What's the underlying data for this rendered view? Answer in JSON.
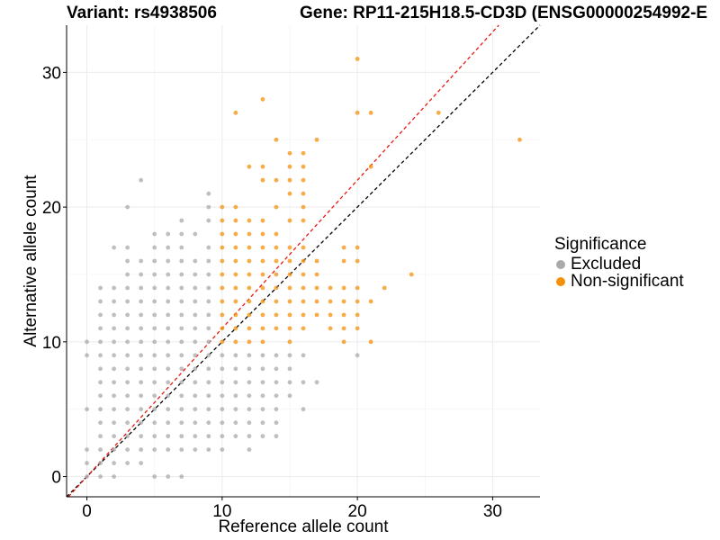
{
  "chart_data": {
    "type": "scatter",
    "title_left": "Variant: rs4938506",
    "title_right": "Gene: RP11-215H18.5-CD3D (ENSG00000254992-E",
    "xlabel": "Reference allele count",
    "ylabel": "Alternative allele count",
    "xlim": [
      -1.5,
      33.5
    ],
    "ylim": [
      -1.5,
      33.5
    ],
    "xticks": [
      0,
      10,
      20,
      30
    ],
    "yticks": [
      0,
      10,
      20,
      30
    ],
    "grid": true,
    "legend": {
      "title": "Significance",
      "placement": "right",
      "items": [
        {
          "label": "Excluded",
          "color": "#aaaaaa"
        },
        {
          "label": "Non-significant",
          "color": "#f5900a"
        }
      ]
    },
    "reference_lines": [
      {
        "slope": 1.0,
        "intercept": 0,
        "color": "#000000",
        "style": "dashed"
      },
      {
        "slope": 1.1,
        "intercept": 0,
        "color": "#e8190f",
        "style": "dashed"
      }
    ],
    "series": [
      {
        "name": "Excluded",
        "color": "#aaaaaa",
        "points": [
          [
            0,
            0
          ],
          [
            0,
            1
          ],
          [
            0,
            2
          ],
          [
            0,
            5
          ],
          [
            0,
            9
          ],
          [
            0,
            10
          ],
          [
            1,
            0
          ],
          [
            1,
            1
          ],
          [
            1,
            2
          ],
          [
            1,
            3
          ],
          [
            1,
            4
          ],
          [
            1,
            5
          ],
          [
            1,
            6
          ],
          [
            1,
            7
          ],
          [
            1,
            8
          ],
          [
            1,
            9
          ],
          [
            1,
            10
          ],
          [
            1,
            11
          ],
          [
            1,
            12
          ],
          [
            1,
            13
          ],
          [
            1,
            14
          ],
          [
            2,
            0
          ],
          [
            2,
            1
          ],
          [
            2,
            2
          ],
          [
            2,
            3
          ],
          [
            2,
            4
          ],
          [
            2,
            5
          ],
          [
            2,
            6
          ],
          [
            2,
            7
          ],
          [
            2,
            8
          ],
          [
            2,
            9
          ],
          [
            2,
            10
          ],
          [
            2,
            11
          ],
          [
            2,
            12
          ],
          [
            2,
            13
          ],
          [
            2,
            14
          ],
          [
            2,
            17
          ],
          [
            3,
            1
          ],
          [
            3,
            2
          ],
          [
            3,
            3
          ],
          [
            3,
            4
          ],
          [
            3,
            5
          ],
          [
            3,
            6
          ],
          [
            3,
            7
          ],
          [
            3,
            8
          ],
          [
            3,
            9
          ],
          [
            3,
            10
          ],
          [
            3,
            11
          ],
          [
            3,
            12
          ],
          [
            3,
            13
          ],
          [
            3,
            14
          ],
          [
            3,
            15
          ],
          [
            3,
            16
          ],
          [
            3,
            17
          ],
          [
            3,
            20
          ],
          [
            4,
            1
          ],
          [
            4,
            2
          ],
          [
            4,
            3
          ],
          [
            4,
            4
          ],
          [
            4,
            5
          ],
          [
            4,
            6
          ],
          [
            4,
            7
          ],
          [
            4,
            8
          ],
          [
            4,
            9
          ],
          [
            4,
            10
          ],
          [
            4,
            11
          ],
          [
            4,
            12
          ],
          [
            4,
            13
          ],
          [
            4,
            14
          ],
          [
            4,
            15
          ],
          [
            4,
            16
          ],
          [
            4,
            22
          ],
          [
            5,
            0
          ],
          [
            5,
            2
          ],
          [
            5,
            3
          ],
          [
            5,
            4
          ],
          [
            5,
            5
          ],
          [
            5,
            6
          ],
          [
            5,
            7
          ],
          [
            5,
            8
          ],
          [
            5,
            9
          ],
          [
            5,
            10
          ],
          [
            5,
            11
          ],
          [
            5,
            12
          ],
          [
            5,
            13
          ],
          [
            5,
            14
          ],
          [
            5,
            15
          ],
          [
            5,
            16
          ],
          [
            5,
            17
          ],
          [
            5,
            18
          ],
          [
            6,
            0
          ],
          [
            6,
            2
          ],
          [
            6,
            3
          ],
          [
            6,
            4
          ],
          [
            6,
            5
          ],
          [
            6,
            6
          ],
          [
            6,
            7
          ],
          [
            6,
            8
          ],
          [
            6,
            9
          ],
          [
            6,
            10
          ],
          [
            6,
            11
          ],
          [
            6,
            12
          ],
          [
            6,
            13
          ],
          [
            6,
            14
          ],
          [
            6,
            15
          ],
          [
            6,
            16
          ],
          [
            6,
            17
          ],
          [
            6,
            18
          ],
          [
            7,
            0
          ],
          [
            7,
            2
          ],
          [
            7,
            3
          ],
          [
            7,
            4
          ],
          [
            7,
            5
          ],
          [
            7,
            6
          ],
          [
            7,
            7
          ],
          [
            7,
            8
          ],
          [
            7,
            9
          ],
          [
            7,
            10
          ],
          [
            7,
            11
          ],
          [
            7,
            12
          ],
          [
            7,
            13
          ],
          [
            7,
            14
          ],
          [
            7,
            15
          ],
          [
            7,
            16
          ],
          [
            7,
            17
          ],
          [
            7,
            18
          ],
          [
            7,
            19
          ],
          [
            8,
            2
          ],
          [
            8,
            3
          ],
          [
            8,
            4
          ],
          [
            8,
            5
          ],
          [
            8,
            6
          ],
          [
            8,
            7
          ],
          [
            8,
            8
          ],
          [
            8,
            9
          ],
          [
            8,
            10
          ],
          [
            8,
            11
          ],
          [
            8,
            12
          ],
          [
            8,
            13
          ],
          [
            8,
            14
          ],
          [
            8,
            15
          ],
          [
            8,
            16
          ],
          [
            8,
            18
          ],
          [
            9,
            2
          ],
          [
            9,
            3
          ],
          [
            9,
            4
          ],
          [
            9,
            5
          ],
          [
            9,
            6
          ],
          [
            9,
            7
          ],
          [
            9,
            8
          ],
          [
            9,
            9
          ],
          [
            9,
            10
          ],
          [
            9,
            11
          ],
          [
            9,
            12
          ],
          [
            9,
            13
          ],
          [
            9,
            14
          ],
          [
            9,
            15
          ],
          [
            9,
            16
          ],
          [
            9,
            17
          ],
          [
            9,
            19
          ],
          [
            9,
            20
          ],
          [
            9,
            21
          ],
          [
            10,
            2
          ],
          [
            10,
            3
          ],
          [
            10,
            4
          ],
          [
            10,
            5
          ],
          [
            10,
            6
          ],
          [
            10,
            7
          ],
          [
            10,
            8
          ],
          [
            10,
            9
          ],
          [
            11,
            3
          ],
          [
            11,
            4
          ],
          [
            11,
            5
          ],
          [
            11,
            6
          ],
          [
            11,
            7
          ],
          [
            11,
            8
          ],
          [
            11,
            9
          ],
          [
            12,
            2
          ],
          [
            12,
            3
          ],
          [
            12,
            4
          ],
          [
            12,
            5
          ],
          [
            12,
            6
          ],
          [
            12,
            7
          ],
          [
            12,
            8
          ],
          [
            12,
            9
          ],
          [
            13,
            3
          ],
          [
            13,
            4
          ],
          [
            13,
            5
          ],
          [
            13,
            6
          ],
          [
            13,
            7
          ],
          [
            13,
            8
          ],
          [
            13,
            9
          ],
          [
            14,
            3
          ],
          [
            14,
            4
          ],
          [
            14,
            5
          ],
          [
            14,
            6
          ],
          [
            14,
            7
          ],
          [
            14,
            8
          ],
          [
            14,
            9
          ],
          [
            15,
            6
          ],
          [
            15,
            7
          ],
          [
            15,
            8
          ],
          [
            15,
            9
          ],
          [
            16,
            5
          ],
          [
            16,
            7
          ],
          [
            16,
            9
          ],
          [
            17,
            7
          ],
          [
            20,
            9
          ]
        ]
      },
      {
        "name": "Non-significant",
        "color": "#f5900a",
        "points": [
          [
            10,
            10
          ],
          [
            10,
            11
          ],
          [
            10,
            12
          ],
          [
            10,
            13
          ],
          [
            10,
            14
          ],
          [
            10,
            15
          ],
          [
            10,
            16
          ],
          [
            10,
            17
          ],
          [
            10,
            18
          ],
          [
            10,
            19
          ],
          [
            10,
            20
          ],
          [
            11,
            10
          ],
          [
            11,
            11
          ],
          [
            11,
            12
          ],
          [
            11,
            13
          ],
          [
            11,
            14
          ],
          [
            11,
            15
          ],
          [
            11,
            16
          ],
          [
            11,
            17
          ],
          [
            11,
            18
          ],
          [
            11,
            19
          ],
          [
            11,
            20
          ],
          [
            11,
            27
          ],
          [
            12,
            10
          ],
          [
            12,
            11
          ],
          [
            12,
            12
          ],
          [
            12,
            13
          ],
          [
            12,
            14
          ],
          [
            12,
            15
          ],
          [
            12,
            16
          ],
          [
            12,
            17
          ],
          [
            12,
            18
          ],
          [
            12,
            19
          ],
          [
            12,
            23
          ],
          [
            13,
            10
          ],
          [
            13,
            11
          ],
          [
            13,
            12
          ],
          [
            13,
            13
          ],
          [
            13,
            14
          ],
          [
            13,
            15
          ],
          [
            13,
            16
          ],
          [
            13,
            17
          ],
          [
            13,
            18
          ],
          [
            13,
            19
          ],
          [
            13,
            22
          ],
          [
            13,
            23
          ],
          [
            13,
            28
          ],
          [
            14,
            11
          ],
          [
            14,
            12
          ],
          [
            14,
            13
          ],
          [
            14,
            14
          ],
          [
            14,
            15
          ],
          [
            14,
            16
          ],
          [
            14,
            17
          ],
          [
            14,
            18
          ],
          [
            14,
            20
          ],
          [
            14,
            22
          ],
          [
            14,
            25
          ],
          [
            15,
            10
          ],
          [
            15,
            11
          ],
          [
            15,
            12
          ],
          [
            15,
            13
          ],
          [
            15,
            14
          ],
          [
            15,
            15
          ],
          [
            15,
            16
          ],
          [
            15,
            17
          ],
          [
            15,
            19
          ],
          [
            15,
            21
          ],
          [
            15,
            22
          ],
          [
            15,
            23
          ],
          [
            15,
            24
          ],
          [
            16,
            11
          ],
          [
            16,
            12
          ],
          [
            16,
            13
          ],
          [
            16,
            14
          ],
          [
            16,
            15
          ],
          [
            16,
            16
          ],
          [
            16,
            17
          ],
          [
            16,
            19
          ],
          [
            16,
            20
          ],
          [
            16,
            21
          ],
          [
            16,
            22
          ],
          [
            16,
            23
          ],
          [
            16,
            24
          ],
          [
            17,
            12
          ],
          [
            17,
            13
          ],
          [
            17,
            14
          ],
          [
            17,
            15
          ],
          [
            17,
            16
          ],
          [
            17,
            25
          ],
          [
            18,
            11
          ],
          [
            18,
            12
          ],
          [
            18,
            13
          ],
          [
            18,
            14
          ],
          [
            19,
            10
          ],
          [
            19,
            11
          ],
          [
            19,
            12
          ],
          [
            19,
            13
          ],
          [
            19,
            14
          ],
          [
            19,
            16
          ],
          [
            19,
            17
          ],
          [
            20,
            11
          ],
          [
            20,
            12
          ],
          [
            20,
            13
          ],
          [
            20,
            14
          ],
          [
            20,
            16
          ],
          [
            20,
            17
          ],
          [
            20,
            27
          ],
          [
            20,
            31
          ],
          [
            21,
            10
          ],
          [
            21,
            13
          ],
          [
            21,
            23
          ],
          [
            21,
            27
          ],
          [
            22,
            14
          ],
          [
            24,
            15
          ],
          [
            26,
            27
          ],
          [
            32,
            25
          ]
        ]
      }
    ]
  }
}
